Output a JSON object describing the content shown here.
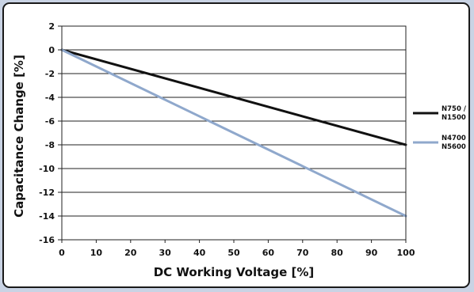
{
  "chart_data": {
    "type": "line",
    "xlabel": "DC Working Voltage [%]",
    "ylabel": "Capacitance Change [%]",
    "xlim": [
      0,
      100
    ],
    "ylim": [
      -16,
      2
    ],
    "xticks": [
      0,
      10,
      20,
      30,
      40,
      50,
      60,
      70,
      80,
      90,
      100
    ],
    "yticks": [
      2,
      0,
      -2,
      -4,
      -6,
      -8,
      -10,
      -12,
      -14,
      -16
    ],
    "grid": "horizontal",
    "legend_position": "right",
    "series": [
      {
        "name_lines": [
          "N750 /",
          "N1500"
        ],
        "color": "#111111",
        "x": [
          0,
          100
        ],
        "y": [
          0,
          -8
        ]
      },
      {
        "name_lines": [
          "N4700 /",
          "N5600"
        ],
        "color": "#8fa8cc",
        "x": [
          0,
          100
        ],
        "y": [
          0,
          -14
        ]
      }
    ]
  }
}
